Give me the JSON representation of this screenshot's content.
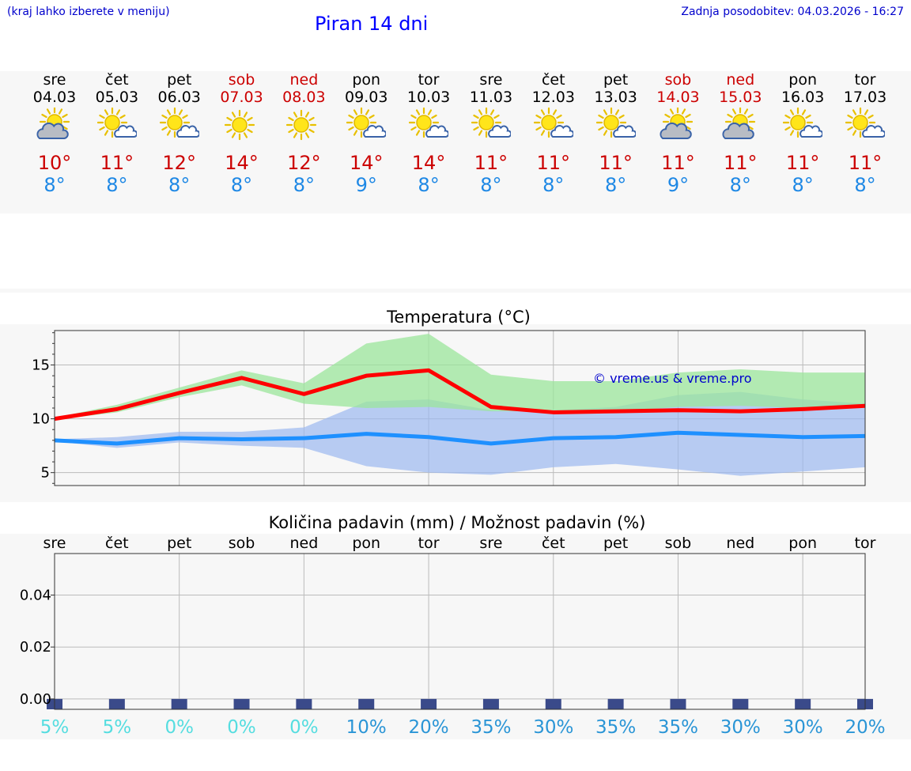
{
  "header": {
    "hint": "(kraj lahko izberete v meniju)",
    "title": "Piran 14 dni",
    "updated": "Zadnja posodobitev: 04.03.2026 - 16:27"
  },
  "colors": {
    "tmax": "#cc0000",
    "tmin": "#1e88e5",
    "weekend": "#cc0000",
    "line_max": "#ff0000",
    "line_min": "#1e90ff",
    "band_max": "#9be59b",
    "band_min": "#9bb8f0",
    "copyright": "#0000cc"
  },
  "days": [
    {
      "name": "sre",
      "date": "04.03",
      "weekend": false,
      "icon": "partly-cloudy-icon",
      "tmax": "10°",
      "tmin": "8°"
    },
    {
      "name": "čet",
      "date": "05.03",
      "weekend": false,
      "icon": "sun-cloud-icon",
      "tmax": "11°",
      "tmin": "8°"
    },
    {
      "name": "pet",
      "date": "06.03",
      "weekend": false,
      "icon": "sun-cloud-icon",
      "tmax": "12°",
      "tmin": "8°"
    },
    {
      "name": "sob",
      "date": "07.03",
      "weekend": true,
      "icon": "sun-icon",
      "tmax": "14°",
      "tmin": "8°"
    },
    {
      "name": "ned",
      "date": "08.03",
      "weekend": true,
      "icon": "sun-icon",
      "tmax": "12°",
      "tmin": "8°"
    },
    {
      "name": "pon",
      "date": "09.03",
      "weekend": false,
      "icon": "sun-cloud-icon",
      "tmax": "14°",
      "tmin": "9°"
    },
    {
      "name": "tor",
      "date": "10.03",
      "weekend": false,
      "icon": "sun-cloud-icon",
      "tmax": "14°",
      "tmin": "8°"
    },
    {
      "name": "sre",
      "date": "11.03",
      "weekend": false,
      "icon": "sun-cloud-icon",
      "tmax": "11°",
      "tmin": "8°"
    },
    {
      "name": "čet",
      "date": "12.03",
      "weekend": false,
      "icon": "sun-cloud-icon",
      "tmax": "11°",
      "tmin": "8°"
    },
    {
      "name": "pet",
      "date": "13.03",
      "weekend": false,
      "icon": "sun-cloud-icon",
      "tmax": "11°",
      "tmin": "8°"
    },
    {
      "name": "sob",
      "date": "14.03",
      "weekend": true,
      "icon": "partly-cloudy-icon",
      "tmax": "11°",
      "tmin": "9°"
    },
    {
      "name": "ned",
      "date": "15.03",
      "weekend": true,
      "icon": "partly-cloudy-icon",
      "tmax": "11°",
      "tmin": "8°"
    },
    {
      "name": "pon",
      "date": "16.03",
      "weekend": false,
      "icon": "sun-cloud-icon",
      "tmax": "11°",
      "tmin": "8°"
    },
    {
      "name": "tor",
      "date": "17.03",
      "weekend": false,
      "icon": "sun-cloud-icon",
      "tmax": "11°",
      "tmin": "8°"
    }
  ],
  "chart_data": [
    {
      "type": "line",
      "title": "Temperatura (°C)",
      "x": [
        "04.03",
        "05.03",
        "06.03",
        "07.03",
        "08.03",
        "09.03",
        "10.03",
        "11.03",
        "12.03",
        "13.03",
        "14.03",
        "15.03",
        "16.03",
        "17.03"
      ],
      "ylim": [
        3.8,
        18.2
      ],
      "yticks": [
        5,
        10,
        15
      ],
      "copyright": "© vreme.us & vreme.pro",
      "series": [
        {
          "name": "max",
          "values": [
            10.0,
            10.9,
            12.4,
            13.8,
            12.3,
            14.0,
            14.5,
            11.1,
            10.6,
            10.7,
            10.8,
            10.7,
            10.9,
            11.2
          ],
          "band_high": [
            10.1,
            11.3,
            12.9,
            14.5,
            13.3,
            17.0,
            17.9,
            14.1,
            13.5,
            13.5,
            14.3,
            14.6,
            14.3,
            14.3
          ],
          "band_low": [
            9.9,
            10.6,
            12.0,
            13.1,
            11.4,
            11.0,
            11.1,
            10.7,
            10.7,
            10.7,
            11.1,
            11.2,
            11.0,
            11.0
          ]
        },
        {
          "name": "min",
          "values": [
            8.0,
            7.7,
            8.2,
            8.1,
            8.2,
            8.6,
            8.3,
            7.7,
            8.2,
            8.3,
            8.7,
            8.5,
            8.3,
            8.4
          ],
          "band_high": [
            8.1,
            8.3,
            8.8,
            8.8,
            9.2,
            11.6,
            11.8,
            10.8,
            10.8,
            11.1,
            12.2,
            12.5,
            11.8,
            11.4
          ],
          "band_low": [
            7.9,
            7.3,
            7.8,
            7.5,
            7.3,
            5.6,
            5.0,
            4.8,
            5.5,
            5.8,
            5.3,
            4.7,
            5.1,
            5.5
          ]
        }
      ]
    },
    {
      "type": "bar",
      "title": "Količina padavin (mm) / Možnost padavin (%)",
      "categories": [
        "sre",
        "čet",
        "pet",
        "sob",
        "ned",
        "pon",
        "tor",
        "sre",
        "čet",
        "pet",
        "sob",
        "ned",
        "pon",
        "tor"
      ],
      "values": [
        0,
        0,
        0,
        0,
        0,
        0,
        0,
        0,
        0,
        0,
        0,
        0,
        0,
        0
      ],
      "ylim": [
        -0.004,
        0.056
      ],
      "yticks": [
        "0.00",
        "0.02",
        "0.04"
      ],
      "ytick_values": [
        0,
        0.02,
        0.04
      ],
      "probability": [
        "5%",
        "5%",
        "0%",
        "0%",
        "0%",
        "10%",
        "20%",
        "35%",
        "30%",
        "35%",
        "35%",
        "30%",
        "30%",
        "20%"
      ],
      "probability_colors": [
        "#55dde0",
        "#55dde0",
        "#55dde0",
        "#55dde0",
        "#55dde0",
        "#2a95d6",
        "#2a95d6",
        "#2a95d6",
        "#2a95d6",
        "#2a95d6",
        "#2a95d6",
        "#2a95d6",
        "#2a95d6",
        "#2a95d6"
      ]
    }
  ]
}
